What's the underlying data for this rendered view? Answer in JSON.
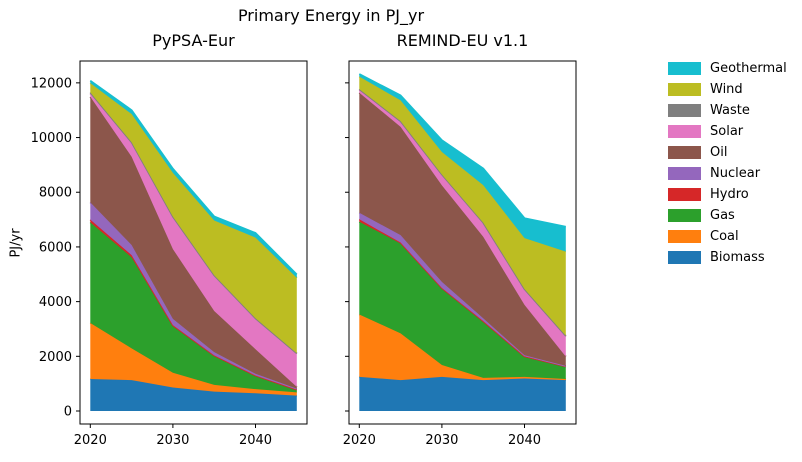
{
  "figure": {
    "title": "Primary Energy in PJ_yr"
  },
  "legend": {
    "items": [
      {
        "label": "Geothermal",
        "color": "#17becf"
      },
      {
        "label": "Wind",
        "color": "#bcbd22"
      },
      {
        "label": "Waste",
        "color": "#7f7f7f"
      },
      {
        "label": "Solar",
        "color": "#e377c2"
      },
      {
        "label": "Oil",
        "color": "#8c564b"
      },
      {
        "label": "Nuclear",
        "color": "#9467bd"
      },
      {
        "label": "Hydro",
        "color": "#d62728"
      },
      {
        "label": "Gas",
        "color": "#2ca02c"
      },
      {
        "label": "Coal",
        "color": "#ff7f0e"
      },
      {
        "label": "Biomass",
        "color": "#1f77b4"
      }
    ]
  },
  "chart_data": [
    {
      "type": "area",
      "stacked": true,
      "title": "PyPSA-Eur",
      "ylabel": "PJ/yr",
      "x": [
        2020,
        2025,
        2030,
        2035,
        2040,
        2045
      ],
      "xticks": [
        "2020",
        "2030",
        "2040"
      ],
      "yticks": [
        0,
        2000,
        4000,
        6000,
        8000,
        10000,
        12000
      ],
      "xlim": [
        2018.75,
        2046.25
      ],
      "ylim": [
        -500,
        12730
      ],
      "grid": false,
      "legend_position": "outside-right (shared figure legend)",
      "series": [
        {
          "name": "Biomass",
          "color": "#1f77b4",
          "values": [
            1170,
            1130,
            860,
            710,
            650,
            560
          ]
        },
        {
          "name": "Coal",
          "color": "#ff7f0e",
          "values": [
            2050,
            1160,
            540,
            245,
            150,
            120
          ]
        },
        {
          "name": "Gas",
          "color": "#2ca02c",
          "values": [
            3680,
            3330,
            1700,
            1050,
            480,
            90
          ]
        },
        {
          "name": "Hydro",
          "color": "#d62728",
          "values": [
            100,
            80,
            40,
            30,
            20,
            10
          ]
        },
        {
          "name": "Nuclear",
          "color": "#9467bd",
          "values": [
            630,
            370,
            230,
            120,
            60,
            40
          ]
        },
        {
          "name": "Oil",
          "color": "#8c564b",
          "values": [
            3860,
            3230,
            2550,
            1500,
            900,
            60
          ]
        },
        {
          "name": "Solar",
          "color": "#e377c2",
          "values": [
            120,
            490,
            1150,
            1280,
            1100,
            1210
          ]
        },
        {
          "name": "Waste",
          "color": "#7f7f7f",
          "values": [
            40,
            40,
            40,
            30,
            30,
            20
          ]
        },
        {
          "name": "Wind",
          "color": "#bcbd22",
          "values": [
            340,
            1030,
            1600,
            2000,
            2950,
            2760
          ]
        },
        {
          "name": "Geothermal",
          "color": "#17becf",
          "values": [
            90,
            140,
            150,
            150,
            170,
            120
          ]
        }
      ]
    },
    {
      "type": "area",
      "stacked": true,
      "title": "REMIND-EU v1.1",
      "ylabel": "",
      "x": [
        2020,
        2025,
        2030,
        2035,
        2040,
        2045
      ],
      "xticks": [
        "2020",
        "2030",
        "2040"
      ],
      "yticks": [
        0,
        2000,
        4000,
        6000,
        8000,
        10000,
        12000
      ],
      "xlim": [
        2018.75,
        2046.25
      ],
      "ylim": [
        -500,
        12730
      ],
      "grid": false,
      "legend_position": "outside-right (shared figure legend)",
      "series": [
        {
          "name": "Biomass",
          "color": "#1f77b4",
          "values": [
            1250,
            1130,
            1250,
            1130,
            1190,
            1130
          ]
        },
        {
          "name": "Coal",
          "color": "#ff7f0e",
          "values": [
            2280,
            1710,
            430,
            80,
            60,
            40
          ]
        },
        {
          "name": "Gas",
          "color": "#2ca02c",
          "values": [
            3390,
            3290,
            2800,
            2060,
            740,
            450
          ]
        },
        {
          "name": "Hydro",
          "color": "#d62728",
          "values": [
            90,
            30,
            20,
            20,
            10,
            10
          ]
        },
        {
          "name": "Nuclear",
          "color": "#9467bd",
          "values": [
            240,
            270,
            220,
            100,
            40,
            20
          ]
        },
        {
          "name": "Oil",
          "color": "#8c564b",
          "values": [
            4390,
            3960,
            3530,
            2980,
            1840,
            340
          ]
        },
        {
          "name": "Solar",
          "color": "#e377c2",
          "values": [
            100,
            180,
            370,
            490,
            550,
            730
          ]
        },
        {
          "name": "Waste",
          "color": "#7f7f7f",
          "values": [
            30,
            30,
            30,
            30,
            30,
            30
          ]
        },
        {
          "name": "Wind",
          "color": "#bcbd22",
          "values": [
            460,
            760,
            820,
            1370,
            1860,
            3080
          ]
        },
        {
          "name": "Geothermal",
          "color": "#17becf",
          "values": [
            90,
            180,
            430,
            610,
            730,
            910
          ]
        }
      ]
    }
  ]
}
